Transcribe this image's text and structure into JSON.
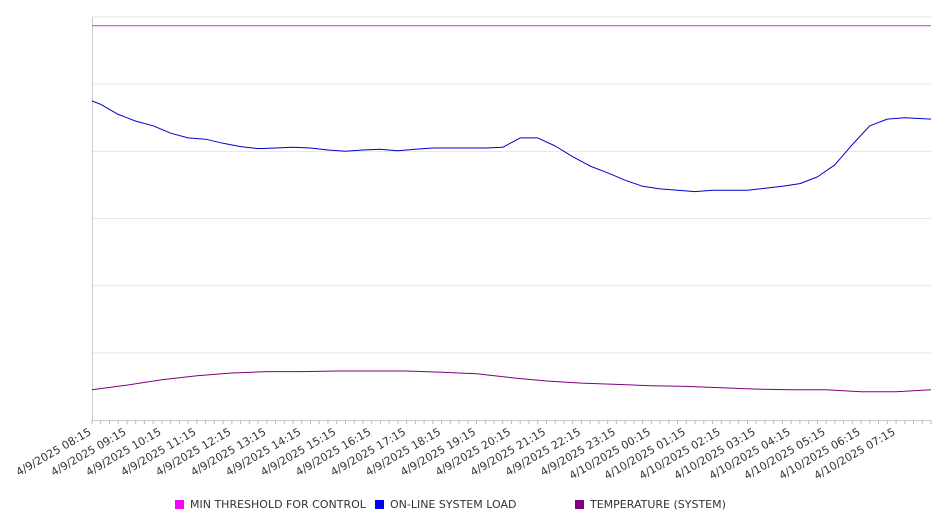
{
  "chart_data": {
    "type": "line",
    "title": "",
    "xlabel": "",
    "ylabel": "",
    "grid": true,
    "legend_position": "bottom",
    "x_tick_labels": [
      "4/9/2025 08:15",
      "4/9/2025 09:15",
      "4/9/2025 10:15",
      "4/9/2025 11:15",
      "4/9/2025 12:15",
      "4/9/2025 13:15",
      "4/9/2025 14:15",
      "4/9/2025 15:15",
      "4/9/2025 16:15",
      "4/9/2025 17:15",
      "4/9/2025 18:15",
      "4/9/2025 19:15",
      "4/9/2025 20:15",
      "4/9/2025 21:15",
      "4/9/2025 22:15",
      "4/9/2025 23:15",
      "4/10/2025 00:15",
      "4/10/2025 01:15",
      "4/10/2025 02:15",
      "4/10/2025 03:15",
      "4/10/2025 04:15",
      "4/10/2025 05:15",
      "4/10/2025 06:15",
      "4/10/2025 07:15"
    ],
    "x_start": "2025-04-09T08:15",
    "x_end": "2025-04-10T08:15",
    "ylim": [
      0,
      6
    ],
    "series": [
      {
        "name": "MIN THRESHOLD FOR CONTROL",
        "color": "#cc33cc",
        "x": [
          "2025-04-09T08:15",
          "2025-04-10T08:15"
        ],
        "y": [
          5.87,
          5.87
        ]
      },
      {
        "name": "ON-LINE SYSTEM LOAD",
        "color": "#0000cc",
        "x": [
          "2025-04-09T08:15",
          "2025-04-09T08:30",
          "2025-04-09T09:00",
          "2025-04-09T09:30",
          "2025-04-09T10:00",
          "2025-04-09T10:30",
          "2025-04-09T11:00",
          "2025-04-09T11:30",
          "2025-04-09T12:00",
          "2025-04-09T12:30",
          "2025-04-09T13:00",
          "2025-04-09T13:30",
          "2025-04-09T14:00",
          "2025-04-09T14:30",
          "2025-04-09T15:00",
          "2025-04-09T15:30",
          "2025-04-09T16:00",
          "2025-04-09T16:30",
          "2025-04-09T17:00",
          "2025-04-09T17:30",
          "2025-04-09T18:00",
          "2025-04-09T18:30",
          "2025-04-09T19:00",
          "2025-04-09T19:30",
          "2025-04-09T20:00",
          "2025-04-09T20:30",
          "2025-04-09T21:00",
          "2025-04-09T21:30",
          "2025-04-09T22:00",
          "2025-04-09T22:30",
          "2025-04-09T23:00",
          "2025-04-09T23:30",
          "2025-04-10T00:00",
          "2025-04-10T00:30",
          "2025-04-10T01:00",
          "2025-04-10T01:30",
          "2025-04-10T02:00",
          "2025-04-10T02:30",
          "2025-04-10T03:00",
          "2025-04-10T03:30",
          "2025-04-10T04:00",
          "2025-04-10T04:30",
          "2025-04-10T05:00",
          "2025-04-10T05:30",
          "2025-04-10T06:00",
          "2025-04-10T06:30",
          "2025-04-10T07:00",
          "2025-04-10T07:30",
          "2025-04-10T08:15"
        ],
        "y": [
          4.75,
          4.7,
          4.55,
          4.45,
          4.38,
          4.27,
          4.2,
          4.18,
          4.12,
          4.07,
          4.04,
          4.05,
          4.06,
          4.05,
          4.02,
          4.0,
          4.02,
          4.03,
          4.01,
          4.03,
          4.05,
          4.05,
          4.05,
          4.05,
          4.06,
          4.2,
          4.2,
          4.08,
          3.92,
          3.78,
          3.68,
          3.57,
          3.48,
          3.44,
          3.42,
          3.4,
          3.42,
          3.42,
          3.42,
          3.45,
          3.48,
          3.52,
          3.62,
          3.8,
          4.1,
          4.38,
          4.48,
          4.5,
          4.48
        ]
      },
      {
        "name": "TEMPERATURE (SYSTEM)",
        "color": "#800080",
        "x": [
          "2025-04-09T08:15",
          "2025-04-09T09:15",
          "2025-04-09T10:15",
          "2025-04-09T11:15",
          "2025-04-09T12:15",
          "2025-04-09T13:15",
          "2025-04-09T14:15",
          "2025-04-09T15:15",
          "2025-04-09T16:15",
          "2025-04-09T17:15",
          "2025-04-09T18:15",
          "2025-04-09T19:15",
          "2025-04-09T20:15",
          "2025-04-09T21:15",
          "2025-04-09T22:15",
          "2025-04-09T23:15",
          "2025-04-10T00:15",
          "2025-04-10T01:15",
          "2025-04-10T02:15",
          "2025-04-10T03:15",
          "2025-04-10T04:15",
          "2025-04-10T05:15",
          "2025-04-10T06:15",
          "2025-04-10T07:15",
          "2025-04-10T08:15"
        ],
        "y": [
          0.45,
          0.52,
          0.6,
          0.66,
          0.7,
          0.72,
          0.72,
          0.73,
          0.73,
          0.73,
          0.71,
          0.69,
          0.63,
          0.58,
          0.55,
          0.53,
          0.51,
          0.5,
          0.48,
          0.46,
          0.45,
          0.45,
          0.42,
          0.42,
          0.45
        ]
      }
    ]
  }
}
